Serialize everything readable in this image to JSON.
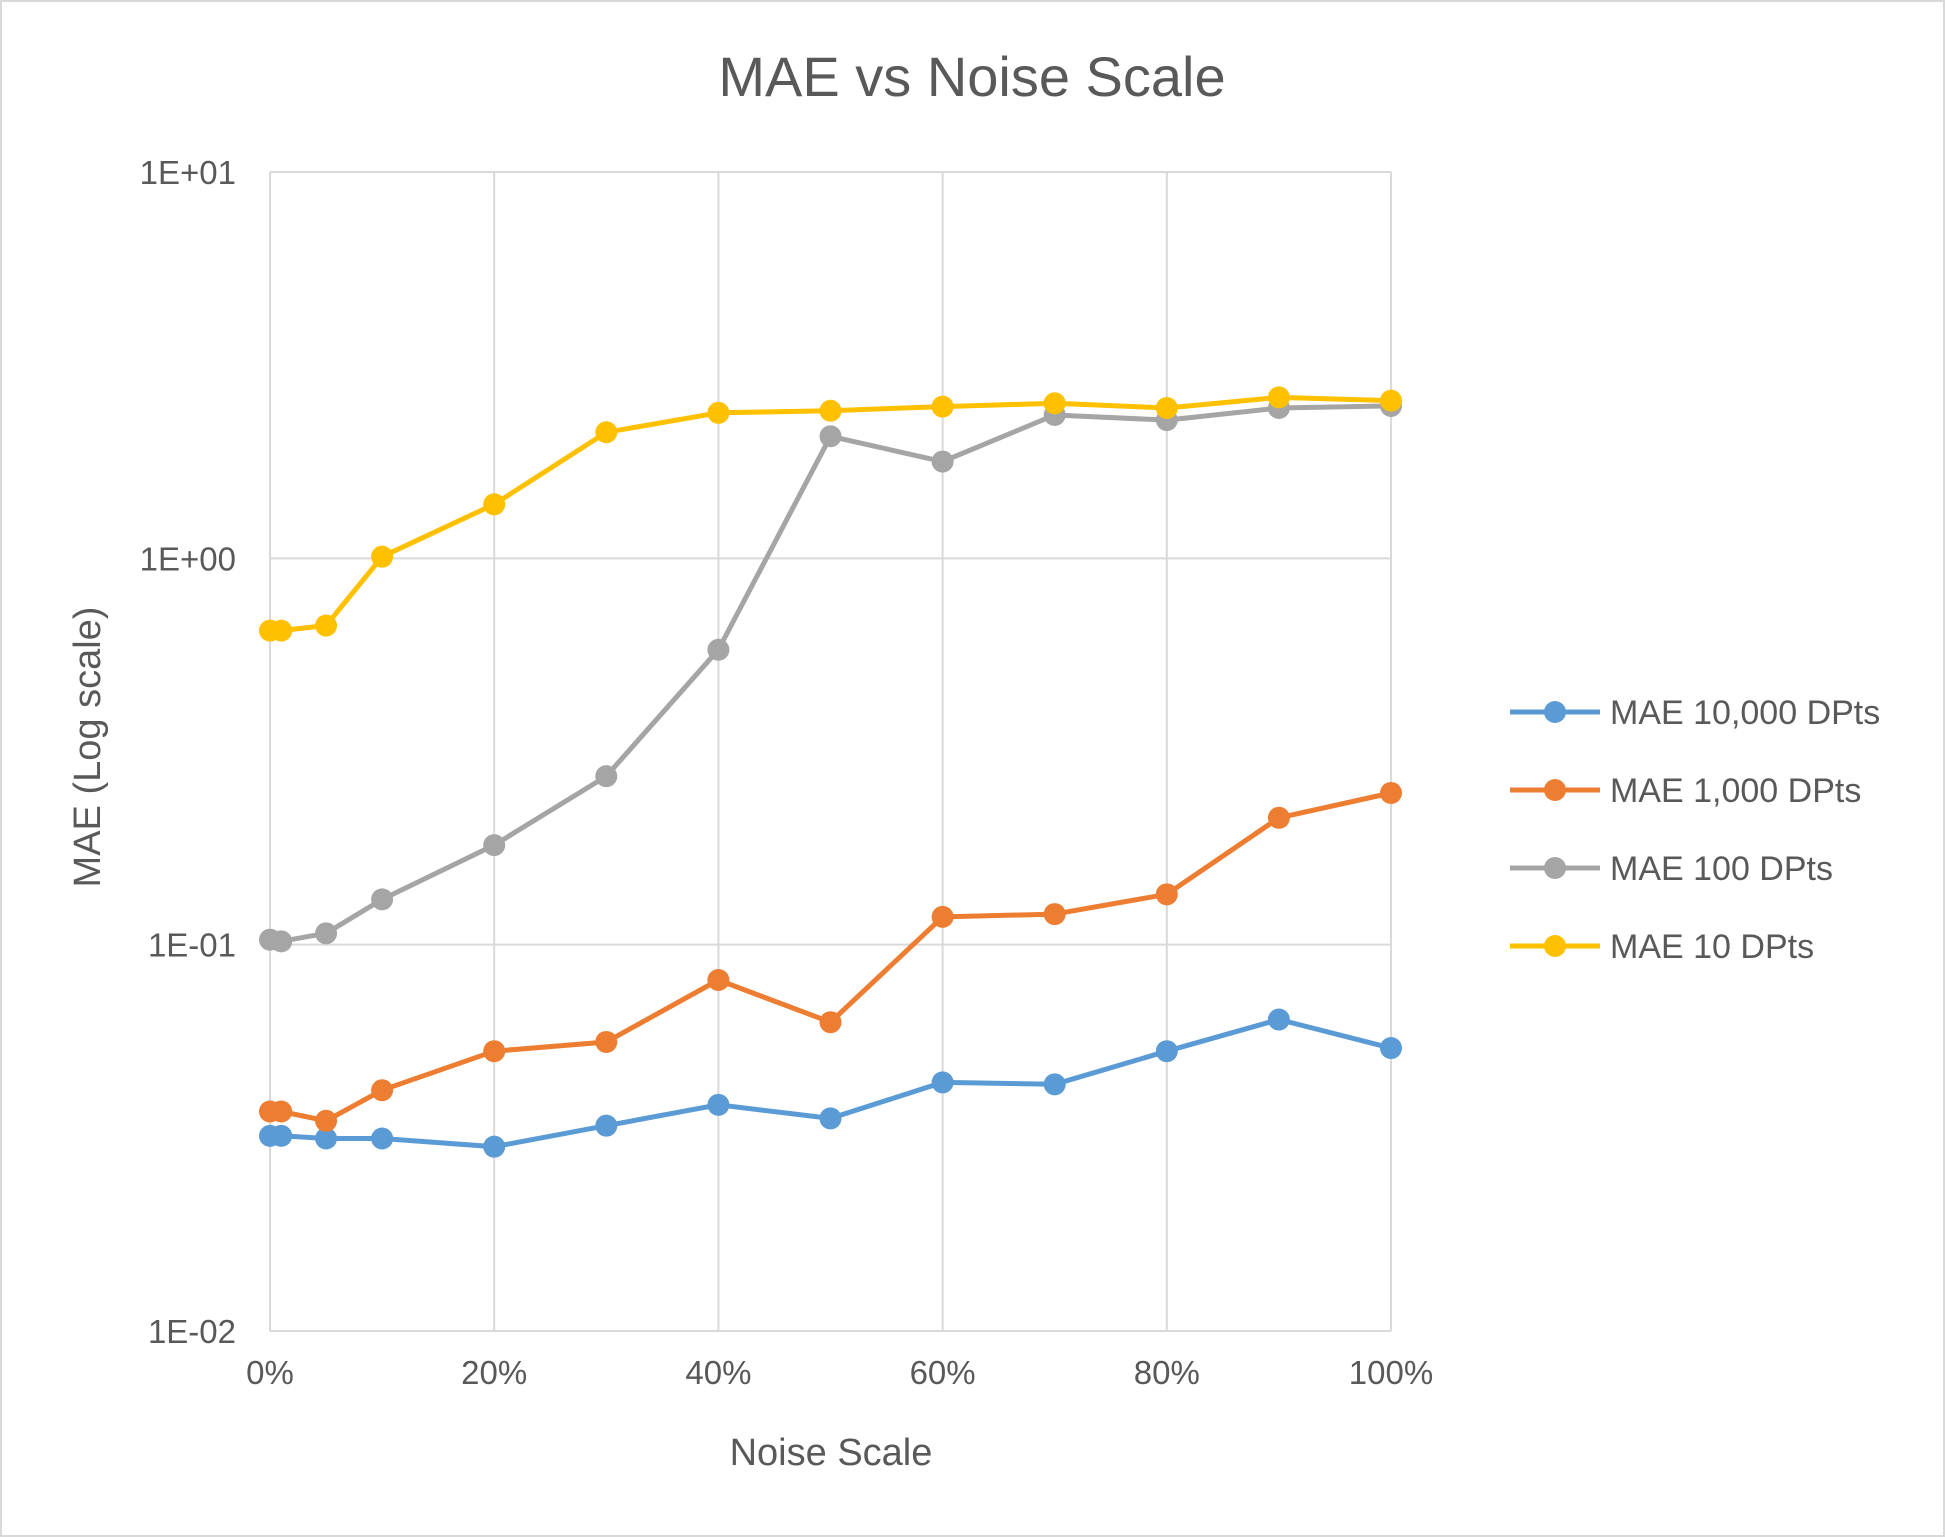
{
  "chart_data": {
    "type": "line",
    "title": "MAE vs Noise Scale",
    "xlabel": "Noise Scale",
    "ylabel": "MAE (Log scale)",
    "x_scale": "linear",
    "y_scale": "log",
    "xlim": [
      0,
      1
    ],
    "ylim": [
      0.01,
      10
    ],
    "x_ticks": [
      0,
      0.2,
      0.4,
      0.6,
      0.8,
      1.0
    ],
    "x_tick_labels": [
      "0%",
      "20%",
      "40%",
      "60%",
      "80%",
      "100%"
    ],
    "y_ticks": [
      0.01,
      0.1,
      1,
      10
    ],
    "y_tick_labels": [
      "1E-02",
      "1E-01",
      "1E+00",
      "1E+01"
    ],
    "grid": true,
    "legend_position": "right",
    "x": [
      0,
      0.01,
      0.05,
      0.1,
      0.2,
      0.3,
      0.4,
      0.5,
      0.6,
      0.7,
      0.8,
      0.9,
      1.0
    ],
    "series": [
      {
        "name": "MAE 10,000 DPts",
        "color": "#5b9bd5",
        "values": [
          0.032,
          0.032,
          0.0315,
          0.0315,
          0.03,
          0.034,
          0.0385,
          0.0355,
          0.044,
          0.0435,
          0.053,
          0.064,
          0.054
        ]
      },
      {
        "name": "MAE 1,000 DPts",
        "color": "#ed7d31",
        "values": [
          0.037,
          0.037,
          0.035,
          0.042,
          0.053,
          0.056,
          0.081,
          0.063,
          0.118,
          0.12,
          0.135,
          0.213,
          0.247
        ]
      },
      {
        "name": "MAE 100 DPts",
        "color": "#a5a5a5",
        "values": [
          0.103,
          0.102,
          0.107,
          0.131,
          0.181,
          0.273,
          0.58,
          2.07,
          1.78,
          2.35,
          2.28,
          2.45,
          2.48
        ]
      },
      {
        "name": "MAE 10 DPts",
        "color": "#ffc000",
        "values": [
          0.65,
          0.65,
          0.67,
          1.01,
          1.38,
          2.12,
          2.38,
          2.41,
          2.47,
          2.52,
          2.45,
          2.61,
          2.56
        ]
      }
    ]
  }
}
